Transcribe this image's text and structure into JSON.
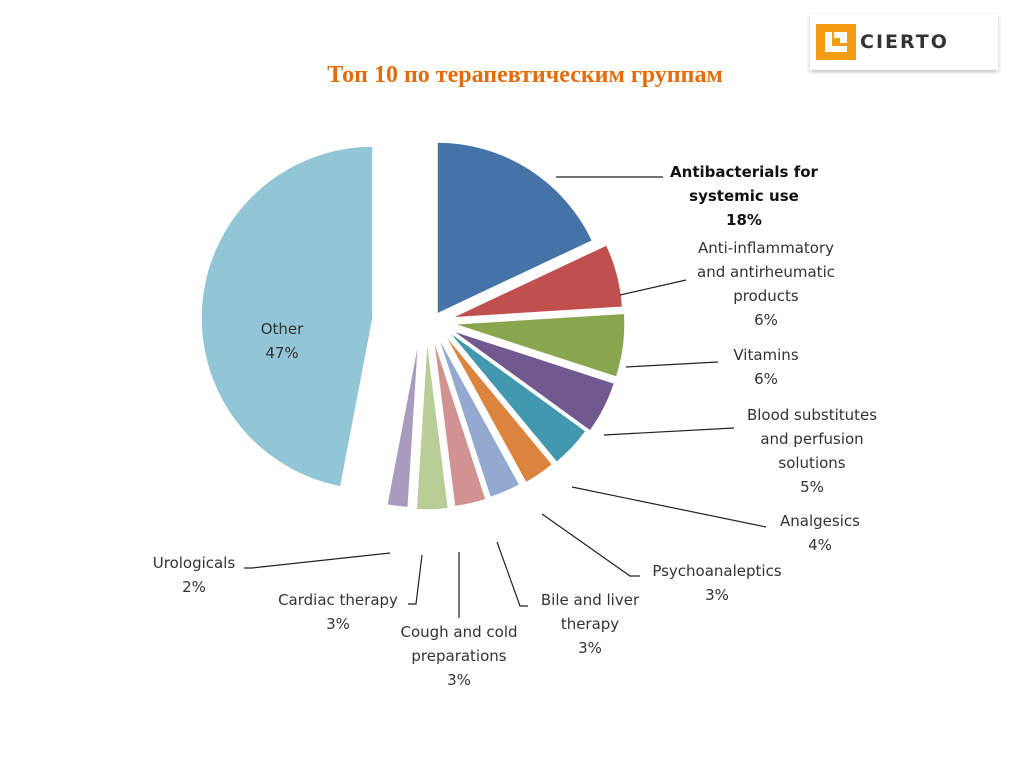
{
  "logo": {
    "text": "CIERTO",
    "icon": "cierto-logo-icon",
    "accent": "#f39c12"
  },
  "title": "Топ 10 по терапевтическим группам",
  "chart_data": {
    "type": "pie",
    "title": "Топ 10 по терапевтическим группам",
    "slices": [
      {
        "label": [
          "Antibacterials for",
          "systemic use",
          "18%"
        ],
        "value": 18,
        "color": "#4572a7",
        "bold": true
      },
      {
        "label": [
          "Anti-inflammatory",
          "and antirheumatic",
          "products",
          "6%"
        ],
        "value": 6,
        "color": "#c0504d"
      },
      {
        "label": [
          "Vitamins",
          "6%"
        ],
        "value": 6,
        "color": "#89a54e"
      },
      {
        "label": [
          "Blood substitutes",
          "and perfusion",
          "solutions",
          "5%"
        ],
        "value": 5,
        "color": "#71588f"
      },
      {
        "label": [
          "Analgesics",
          "4%"
        ],
        "value": 4,
        "color": "#4198af"
      },
      {
        "label": [
          "Psychoanaleptics",
          "3%"
        ],
        "value": 3,
        "color": "#db843d"
      },
      {
        "label": [
          "Bile and liver",
          "therapy",
          "3%"
        ],
        "value": 3,
        "color": "#93a9cf"
      },
      {
        "label": [
          "Cough and cold",
          "preparations",
          "3%"
        ],
        "value": 3,
        "color": "#d19392"
      },
      {
        "label": [
          "Cardiac therapy",
          "3%"
        ],
        "value": 3,
        "color": "#b9cd96"
      },
      {
        "label": [
          "Urologicals",
          "2%"
        ],
        "value": 2,
        "color": "#a99bbd"
      },
      {
        "label": [
          "Other",
          "47%"
        ],
        "value": 47,
        "color": "#92c5d5"
      }
    ]
  }
}
